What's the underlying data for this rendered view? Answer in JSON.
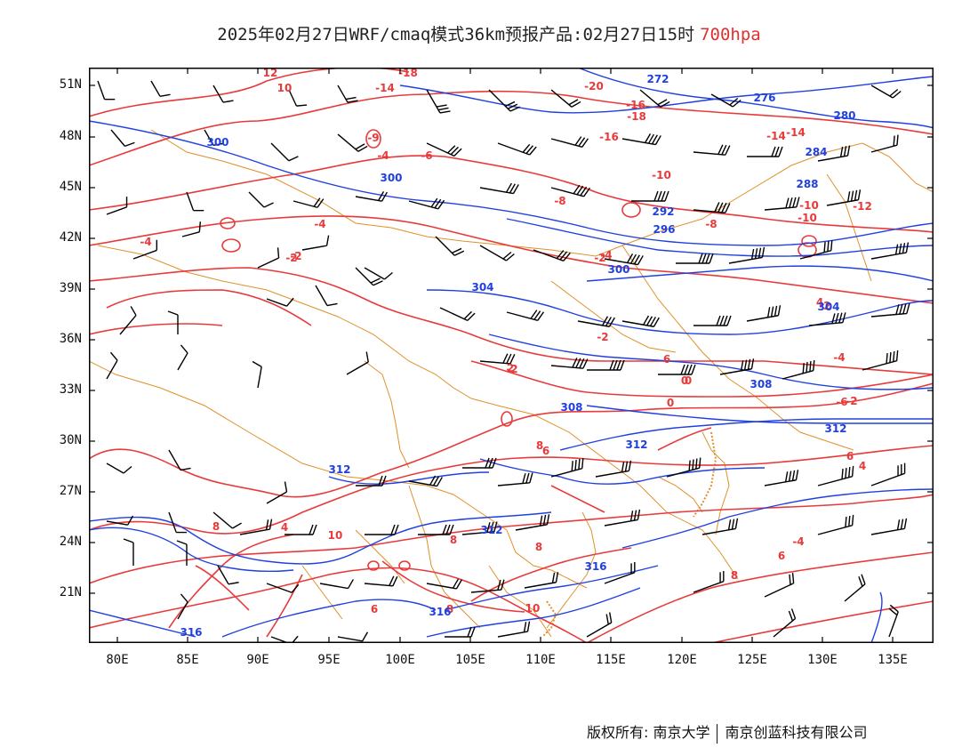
{
  "title": {
    "main": "2025年02月27日WRF/cmaq模式36km预报产品:02月27日15时",
    "level": "700hpa"
  },
  "map": {
    "lat_labels": [
      "51N",
      "48N",
      "45N",
      "42N",
      "39N",
      "36N",
      "33N",
      "30N",
      "27N",
      "24N",
      "21N"
    ],
    "lon_labels": [
      "80E",
      "85E",
      "90E",
      "95E",
      "100E",
      "105E",
      "110E",
      "115E",
      "120E",
      "125E",
      "130E",
      "135E"
    ],
    "colors": {
      "temperature": "#e83a3a",
      "height": "#2040e0",
      "border": "#e0902a",
      "barb": "#000000",
      "frame": "#000000"
    },
    "temperature_contour_labels": [
      "12",
      "10",
      "-14",
      "-18",
      "-20",
      "-16",
      "-18",
      "-16",
      "-14",
      "-14",
      "-10",
      "-9",
      "-4",
      "-6",
      "-8",
      "-10",
      "-12",
      "-10",
      "-8",
      "-4",
      "-2",
      "-4",
      "-2",
      "-4",
      "-2",
      "0",
      "-2",
      "-2",
      "2",
      "4",
      "-6",
      "-4",
      "-2",
      "-2",
      "0",
      "0",
      "6",
      "8",
      "6",
      "4",
      "8",
      "10",
      "8",
      "8",
      "6",
      "8",
      "10",
      "8",
      "6",
      "-4",
      "4",
      "6"
    ],
    "height_contour_labels": [
      "272",
      "276",
      "280",
      "284",
      "288",
      "292",
      "296",
      "300",
      "300",
      "300",
      "304",
      "304",
      "308",
      "308",
      "312",
      "312",
      "312",
      "312",
      "316",
      "316",
      "316"
    ],
    "legend_icons": [
      "wind-barb-icon"
    ]
  },
  "footer": {
    "copyright": "版权所有: 南京大学",
    "company": "南京创蓝科技有限公司"
  }
}
